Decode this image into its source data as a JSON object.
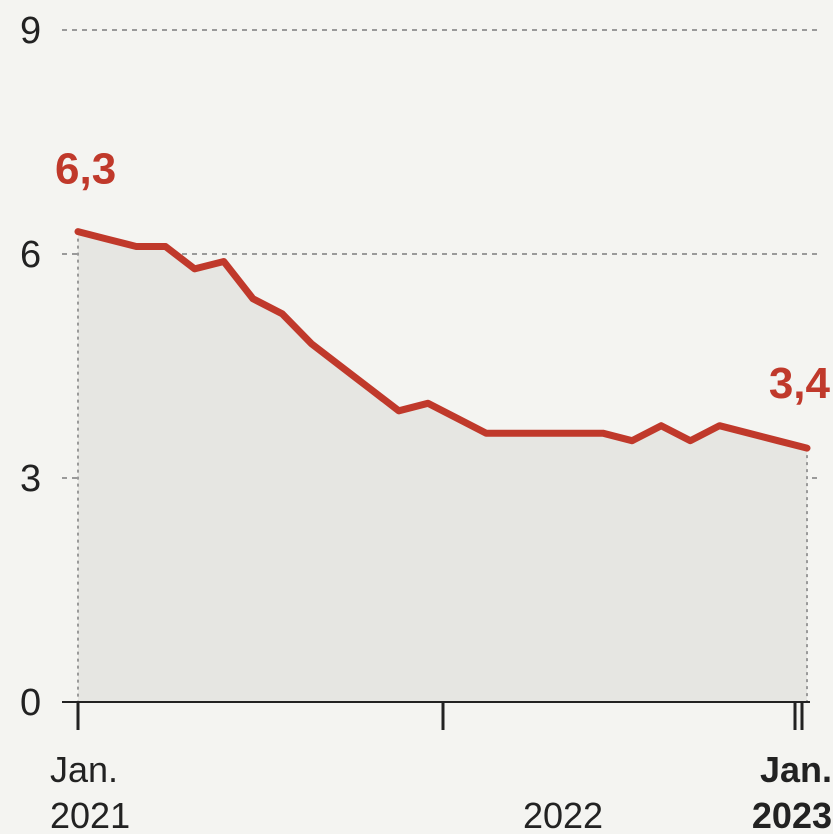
{
  "chart_data": {
    "type": "area",
    "title": "",
    "xlabel": "",
    "ylabel": "",
    "ylim": [
      0,
      9
    ],
    "yticks": [
      {
        "value": 0,
        "label": "0"
      },
      {
        "value": 3,
        "label": "3"
      },
      {
        "value": 6,
        "label": "6"
      },
      {
        "value": 9,
        "label": "9"
      }
    ],
    "xticks": [
      {
        "line1": "Jan.",
        "line2": "2021",
        "bold": false
      },
      {
        "line1": "",
        "line2": "2022",
        "bold": false
      },
      {
        "line1": "Jan.",
        "line2": "2023",
        "bold": true
      }
    ],
    "grid": true,
    "colors": {
      "line": "#c0392b",
      "area": "#e6e6e2",
      "grid": "#9a9a9a",
      "label": "#c0392b"
    },
    "series": [
      {
        "values": [
          6.3,
          6.2,
          6.1,
          6.1,
          5.8,
          5.9,
          5.4,
          5.2,
          4.8,
          4.5,
          4.2,
          3.9,
          4.0,
          3.8,
          3.6,
          3.6,
          3.6,
          3.6,
          3.6,
          3.5,
          3.7,
          3.5,
          3.7,
          3.6,
          3.5,
          3.4
        ]
      }
    ],
    "annotations": [
      {
        "label": "6,3",
        "position": "start"
      },
      {
        "label": "3,4",
        "position": "end"
      }
    ]
  }
}
